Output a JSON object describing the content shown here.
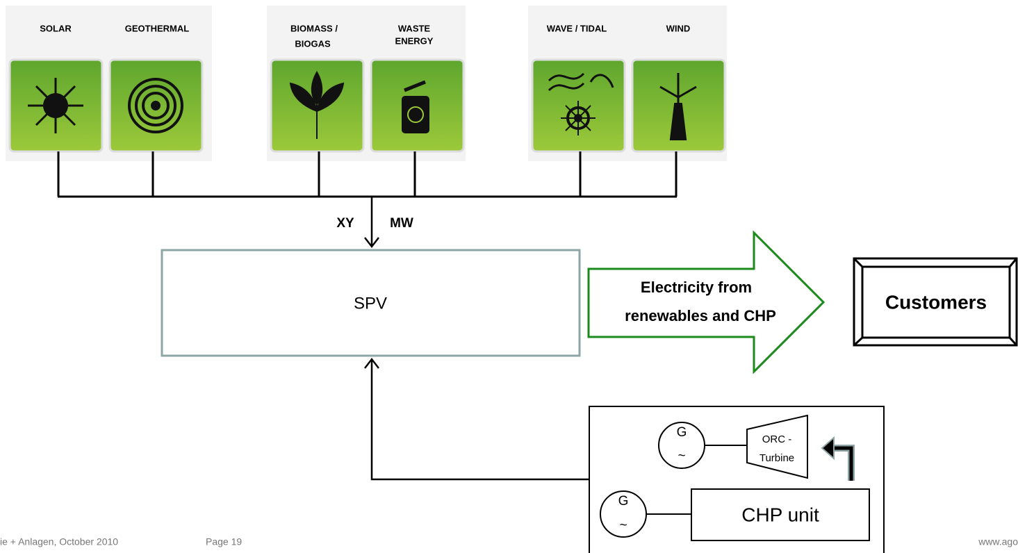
{
  "sources": [
    {
      "label": [
        "SOLAR"
      ]
    },
    {
      "label": [
        "GEOTHERMAL"
      ]
    },
    {
      "label": [
        "BIOMASS /",
        "BIOGAS"
      ]
    },
    {
      "label": [
        "WASTE",
        "ENERGY"
      ]
    },
    {
      "label": [
        "WAVE / TIDAL"
      ]
    },
    {
      "label": [
        "WIND"
      ]
    }
  ],
  "capacity": {
    "left": "XY",
    "right": "MW"
  },
  "spv": {
    "label": "SPV"
  },
  "flow": {
    "label": [
      "Electricity from",
      "renewables and CHP"
    ]
  },
  "customers": {
    "label": "Customers"
  },
  "plant": {
    "generators": [
      {
        "label": "G",
        "symbol": "~"
      },
      {
        "label": "G",
        "symbol": "~"
      }
    ],
    "turbine": {
      "label": [
        "ORC -",
        "Turbine"
      ]
    },
    "chp": {
      "label": "CHP unit"
    }
  },
  "footer": {
    "left": "ie + Anlagen, October 2010",
    "page": "Page 19",
    "right": "www.ago"
  }
}
